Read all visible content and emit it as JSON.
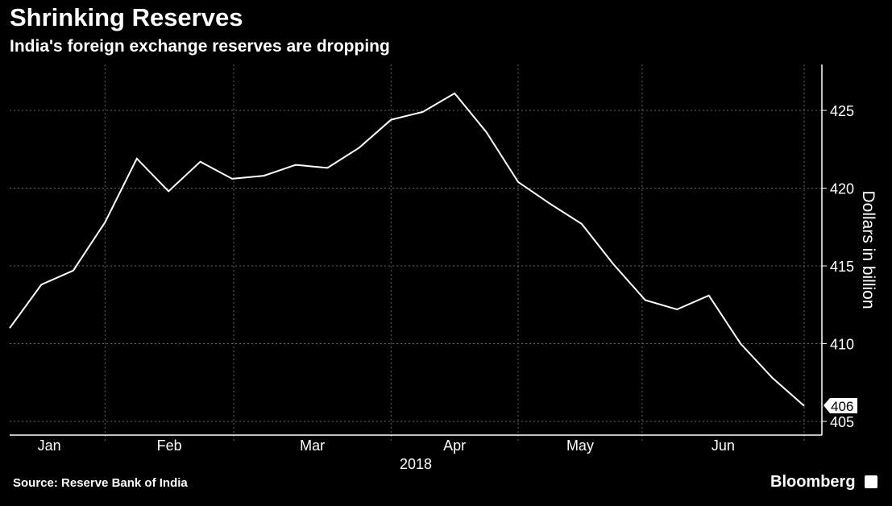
{
  "title": "Shrinking Reserves",
  "subtitle": "India's foreign exchange reserves are dropping",
  "source": "Source: Reserve Bank of India",
  "brand": "Bloomberg",
  "chart_data": {
    "type": "line",
    "title": "Shrinking Reserves",
    "subtitle": "India's foreign exchange reserves are dropping",
    "ylabel": "Dollars in billion",
    "xlabel": "2018",
    "x_tick_labels": [
      "Jan",
      "Feb",
      "Mar",
      "Apr",
      "May",
      "Jun"
    ],
    "y_ticks": [
      405,
      410,
      415,
      420,
      425
    ],
    "ylim": [
      404.2,
      428
    ],
    "y_axis_side": "right",
    "grid": true,
    "line_color": "#ffffff",
    "background": "#000000",
    "last_value_label": "406",
    "x": [
      "2018-01-05",
      "2018-01-12",
      "2018-01-19",
      "2018-01-26",
      "2018-02-02",
      "2018-02-09",
      "2018-02-16",
      "2018-02-23",
      "2018-03-02",
      "2018-03-09",
      "2018-03-16",
      "2018-03-23",
      "2018-03-30",
      "2018-04-06",
      "2018-04-13",
      "2018-04-20",
      "2018-04-27",
      "2018-05-04",
      "2018-05-11",
      "2018-05-18",
      "2018-05-25",
      "2018-06-01",
      "2018-06-08",
      "2018-06-15",
      "2018-06-22",
      "2018-06-29"
    ],
    "values": [
      411.0,
      413.8,
      414.7,
      417.8,
      421.9,
      419.8,
      421.7,
      420.6,
      420.8,
      421.5,
      421.3,
      422.6,
      424.4,
      424.9,
      426.1,
      423.6,
      420.4,
      419.0,
      417.7,
      415.1,
      412.8,
      412.2,
      413.1,
      410.0,
      407.8,
      406.0
    ]
  }
}
